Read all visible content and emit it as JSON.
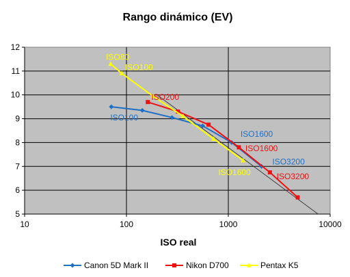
{
  "chart_data": {
    "type": "scatter",
    "title": "Rango dinámico (EV)",
    "xlabel": "ISO real",
    "ylabel": "",
    "x_scale": "log",
    "xlim": [
      10,
      10000
    ],
    "ylim": [
      5,
      12
    ],
    "x_ticks": [
      "10",
      "100",
      "1000",
      "10000"
    ],
    "y_ticks": [
      "5",
      "6",
      "7",
      "8",
      "9",
      "10",
      "11",
      "12"
    ],
    "grid": true,
    "legend": "bottom",
    "background": "#c0c0c0",
    "series": [
      {
        "name": "Canon 5D Mark II",
        "color": "#1f6fc5",
        "x": [
          71,
          143,
          280,
          560,
          1080,
          2120
        ],
        "y": [
          9.5,
          9.35,
          9.05,
          8.7,
          8.0,
          7.0
        ]
      },
      {
        "name": "Nikon D700",
        "color": "#ee1111",
        "x": [
          162,
          320,
          640,
          1270,
          2560,
          4800
        ],
        "y": [
          9.7,
          9.3,
          8.75,
          7.8,
          6.75,
          5.7
        ]
      },
      {
        "name": "Pentax K5",
        "color": "#ffff00",
        "x": [
          70,
          90,
          182,
          360,
          720,
          1400
        ],
        "y": [
          11.3,
          10.9,
          9.95,
          9.1,
          8.15,
          7.25
        ]
      }
    ],
    "reference_line": {
      "x": [
        200,
        7600
      ],
      "y": [
        10,
        5
      ]
    },
    "annotations": [
      {
        "text": "ISO80",
        "x": 82,
        "y": 11.58,
        "color": "#ffff00"
      },
      {
        "text": "ISO100",
        "x": 133,
        "y": 11.15,
        "color": "#ffff00"
      },
      {
        "text": "ISO200",
        "x": 240,
        "y": 9.9,
        "color": "#ee1111"
      },
      {
        "text": "ISO100",
        "x": 95,
        "y": 9.05,
        "color": "#1f6fc5"
      },
      {
        "text": "ISO1600",
        "x": 1900,
        "y": 8.35,
        "color": "#1f6fc5"
      },
      {
        "text": "ISO1600",
        "x": 2120,
        "y": 7.75,
        "color": "#ee1111"
      },
      {
        "text": "ISO1600",
        "x": 1150,
        "y": 6.75,
        "color": "#ffff00"
      },
      {
        "text": "ISO3200",
        "x": 3900,
        "y": 7.2,
        "color": "#1f6fc5"
      },
      {
        "text": "ISO3200",
        "x": 4300,
        "y": 6.58,
        "color": "#ee1111"
      }
    ]
  }
}
